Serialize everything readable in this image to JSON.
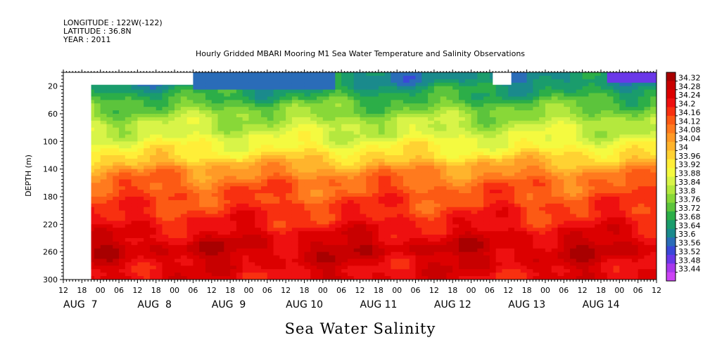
{
  "chart_data": {
    "type": "heatmap",
    "subtype": "filled-contour",
    "title": "Hourly Gridded MBARI Mooring M1 Sea Water Temperature and Salinity Observations",
    "header_lines": [
      "LONGITUDE : 122W(-122)",
      "LATITUDE : 36.8N",
      "YEAR : 2011"
    ],
    "variable_label": "Sea Water Salinity",
    "ylabel": "DEPTH (m)",
    "ylim": [
      300,
      0
    ],
    "y_ticks": [
      20,
      60,
      100,
      140,
      180,
      220,
      260,
      300
    ],
    "x_hour_ticks": [
      "12",
      "18",
      "00",
      "06",
      "12",
      "18",
      "00",
      "06",
      "12",
      "18",
      "00",
      "06",
      "12",
      "18",
      "00",
      "06",
      "12",
      "18",
      "00",
      "06",
      "12",
      "18",
      "00",
      "06",
      "12",
      "18",
      "00",
      "06",
      "12",
      "18",
      "00",
      "06",
      "12"
    ],
    "x_date_labels": [
      "AUG  7",
      "AUG  8",
      "AUG  9",
      "AUG 10",
      "AUG 11",
      "AUG 12",
      "AUG 13",
      "AUG 14"
    ],
    "time_range_hours": [
      0,
      192
    ],
    "colorbar_levels": [
      "34.32",
      "34.28",
      "34.24",
      "34.2",
      "34.16",
      "34.12",
      "34.08",
      "34.04",
      "34",
      "33.96",
      "33.92",
      "33.88",
      "33.84",
      "33.8",
      "33.76",
      "33.72",
      "33.68",
      "33.64",
      "33.6",
      "33.56",
      "33.52",
      "33.48",
      "33.44"
    ],
    "colorbar_colors": [
      "#a80000",
      "#c80000",
      "#dc0000",
      "#ee1010",
      "#f83010",
      "#fc5a14",
      "#ff7a1e",
      "#ff9a26",
      "#ffb42c",
      "#ffd232",
      "#ffee38",
      "#f4fa40",
      "#d8f448",
      "#b4e83e",
      "#88d838",
      "#5cc43c",
      "#2cae48",
      "#1a9c6c",
      "#1a8a8c",
      "#2a6cb8",
      "#3a48d8",
      "#6a38e8",
      "#a838ec",
      "#cc44f4"
    ],
    "depth_profile": [
      {
        "depth": 10,
        "value": 33.62
      },
      {
        "depth": 20,
        "value": 33.66
      },
      {
        "depth": 35,
        "value": 33.7
      },
      {
        "depth": 50,
        "value": 33.76
      },
      {
        "depth": 70,
        "value": 33.82
      },
      {
        "depth": 90,
        "value": 33.86
      },
      {
        "depth": 110,
        "value": 33.92
      },
      {
        "depth": 125,
        "value": 33.98
      },
      {
        "depth": 140,
        "value": 34.06
      },
      {
        "depth": 160,
        "value": 34.12
      },
      {
        "depth": 180,
        "value": 34.15
      },
      {
        "depth": 200,
        "value": 34.18
      },
      {
        "depth": 220,
        "value": 34.21
      },
      {
        "depth": 240,
        "value": 34.26
      },
      {
        "depth": 255,
        "value": 34.29
      },
      {
        "depth": 270,
        "value": 34.27
      },
      {
        "depth": 290,
        "value": 34.24
      },
      {
        "depth": 300,
        "value": 34.24
      }
    ],
    "missing_data": [
      {
        "t_start": 0,
        "t_end": 9,
        "depth_top": 0,
        "depth_bottom": 300
      },
      {
        "t_start": 9,
        "t_end": 42,
        "depth_top": 0,
        "depth_bottom": 18
      },
      {
        "t_start": 139,
        "t_end": 145,
        "depth_top": 0,
        "depth_bottom": 18
      }
    ],
    "surface_low_salinity": [
      {
        "t_start": 42,
        "t_end": 88,
        "depth_top": 0,
        "depth_bottom": 24,
        "value": 33.58
      },
      {
        "t_start": 175,
        "t_end": 192,
        "depth_top": 0,
        "depth_bottom": 14,
        "value": 33.48
      }
    ]
  }
}
